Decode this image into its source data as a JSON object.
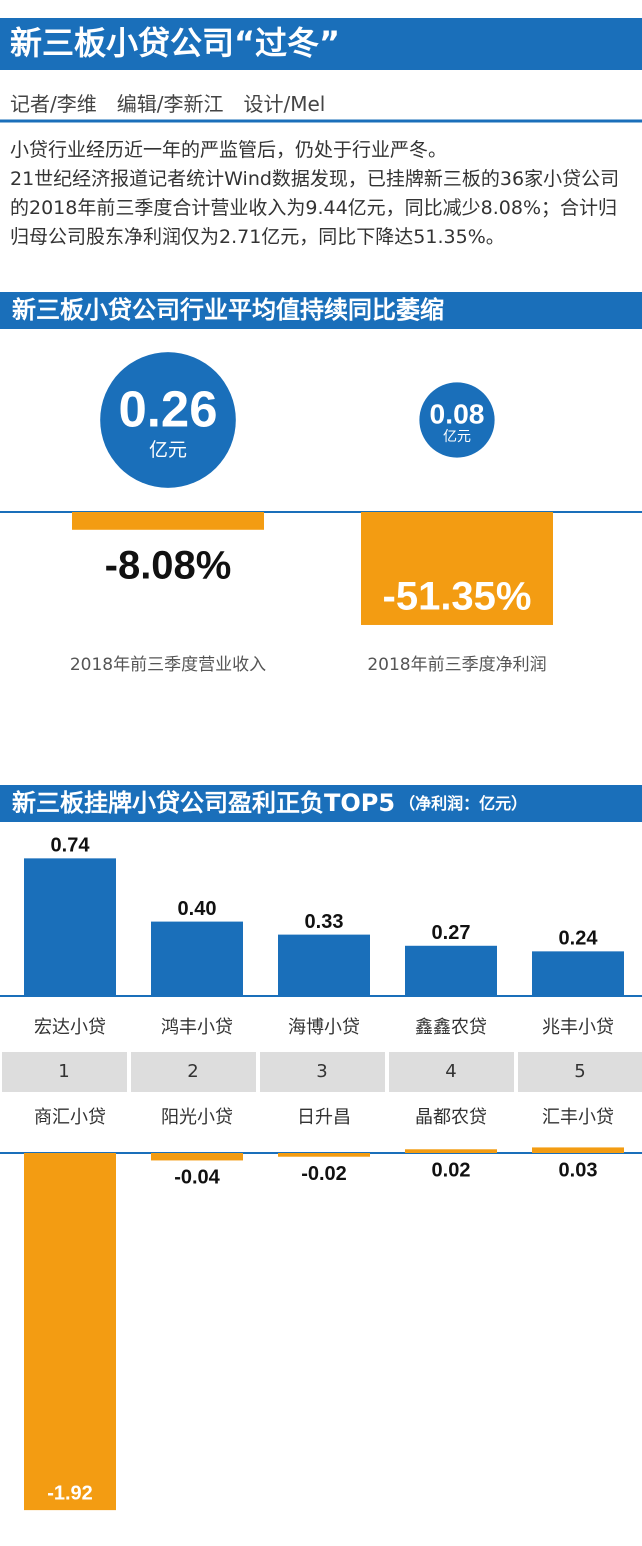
{
  "title": "新三板小贷公司“过冬”",
  "byline": "记者/李维　编辑/李新江　设计/Mel",
  "intro": [
    "小贷行业经历近一年的严监管后，仍处于行业严冬。",
    "21世纪经济报道记者统计Wind数据发现，已挂牌新三板的36家小贷公司的2018年前三季度合计营业收入为9.44亿元，同比减少8.08%；合计归归母公司股东净利润仅为2.71亿元，同比下降达51.35%。"
  ],
  "chart_data": [
    {
      "type": "avg",
      "title": "新三板小贷公司行业平均值持续同比萎缩",
      "unit": "亿元",
      "categories": [
        "2018年前三季度营业收入",
        "2018年前三季度净利润"
      ],
      "values": [
        0.26,
        0.08
      ],
      "value_labels": [
        "0.26",
        "0.08"
      ],
      "color": "#1a6fba",
      "change": [
        -8.08,
        -51.35
      ],
      "change_labels": [
        "-8.08%",
        "-51.35%"
      ],
      "change_color": "#f39c12"
    },
    {
      "type": "bar",
      "title": "新三板挂牌小贷公司盈利正负TOP5",
      "subtitle": "（净利润：亿元）",
      "ranks": [
        1,
        2,
        3,
        4,
        5
      ],
      "series": [
        {
          "categories": [
            "宏达小贷",
            "鸿丰小贷",
            "海博小贷",
            "鑫鑫农贷",
            "兆丰小贷"
          ],
          "color": "#1a6fba",
          "values": [
            0.74,
            0.4,
            0.33,
            0.27,
            0.24
          ],
          "value_labels": [
            "0.74",
            "0.40",
            "0.33",
            "0.27",
            "0.24"
          ]
        },
        {
          "categories": [
            "商汇小贷",
            "阳光小贷",
            "日升昌",
            "晶都农贷",
            "汇丰小贷"
          ],
          "color": "#f39c12",
          "values": [
            -1.92,
            -0.04,
            -0.02,
            0.02,
            0.03
          ],
          "value_labels": [
            "-1.92",
            "-0.04",
            "-0.02",
            "0.02",
            "0.03"
          ]
        }
      ]
    }
  ]
}
